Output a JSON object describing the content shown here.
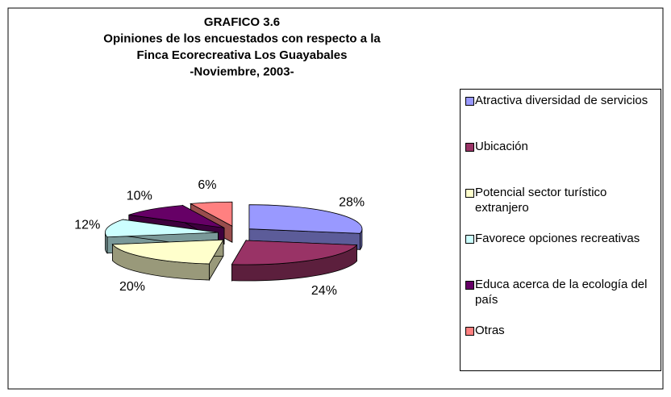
{
  "chart_data": {
    "type": "pie3d",
    "title": [
      "GRAFICO 3.6",
      "Opiniones de los encuestados con respecto a la",
      "Finca Ecorecreativa Los Guayabales",
      "-Noviembre, 2003-"
    ],
    "categories": [
      "Atractiva diversidad de servicios",
      "Ubicación",
      "Potencial sector turístico extranjero",
      "Favorece opciones recreativas",
      "Educa acerca de la ecología del país",
      "Otras"
    ],
    "values": [
      28,
      24,
      20,
      12,
      10,
      6
    ],
    "value_labels": [
      "28%",
      "24%",
      "20%",
      "12%",
      "10%",
      "6%"
    ],
    "colors": [
      "#9999ff",
      "#993366",
      "#ffffcc",
      "#ccffff",
      "#660066",
      "#ff8080"
    ],
    "legend": "right"
  }
}
